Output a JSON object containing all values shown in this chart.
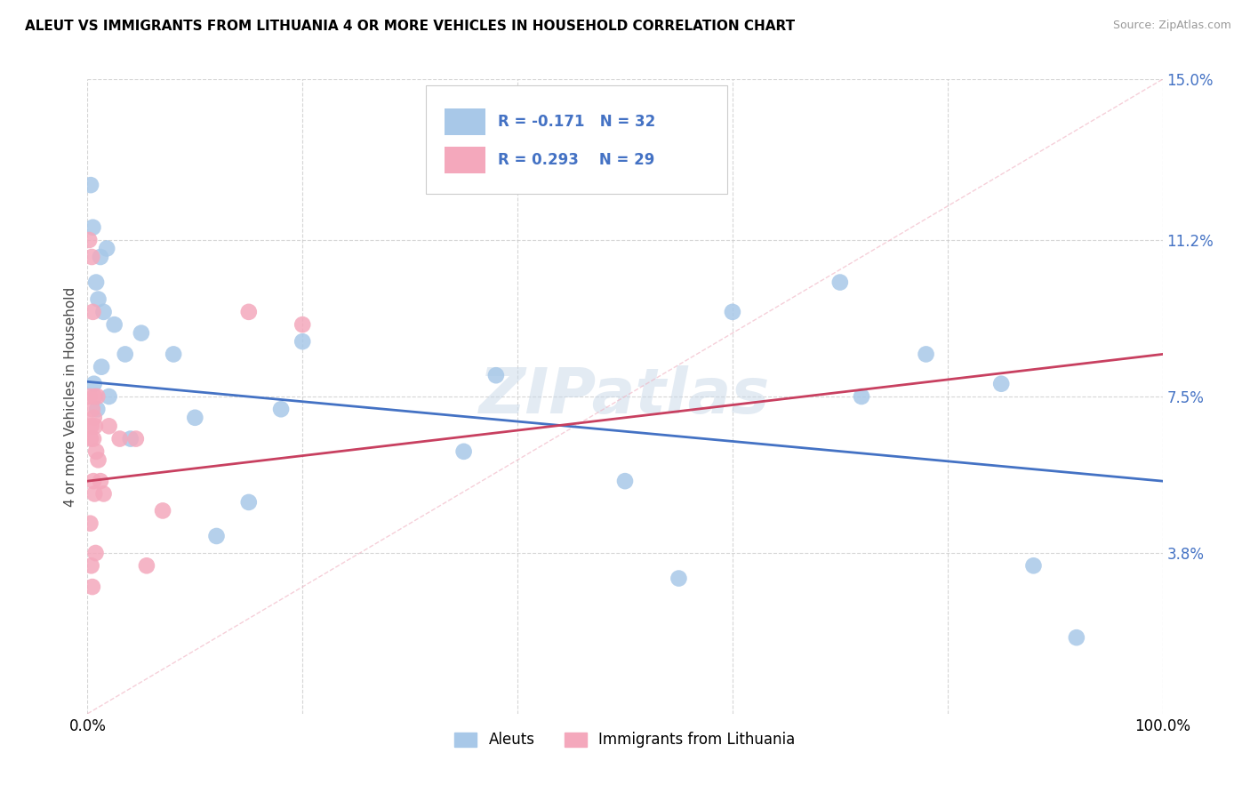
{
  "title": "ALEUT VS IMMIGRANTS FROM LITHUANIA 4 OR MORE VEHICLES IN HOUSEHOLD CORRELATION CHART",
  "source": "Source: ZipAtlas.com",
  "ylabel": "4 or more Vehicles in Household",
  "ytick_values": [
    3.8,
    7.5,
    11.2,
    15.0
  ],
  "xmin": 0.0,
  "xmax": 100.0,
  "ymin": 0.0,
  "ymax": 15.0,
  "legend_label1": "Aleuts",
  "legend_label2": "Immigrants from Lithuania",
  "r1": -0.171,
  "n1": 32,
  "r2": 0.293,
  "n2": 29,
  "color_aleut": "#a8c8e8",
  "color_lith": "#f4a8bc",
  "line_color_aleut": "#4472c4",
  "line_color_lith": "#c84060",
  "diag_color": "#f0b0c0",
  "background": "#ffffff",
  "aleut_x": [
    0.3,
    0.5,
    0.8,
    1.0,
    1.2,
    1.5,
    1.8,
    2.0,
    2.5,
    3.5,
    5.0,
    8.0,
    10.0,
    12.0,
    15.0,
    18.0,
    35.0,
    50.0,
    55.0,
    60.0,
    70.0,
    72.0,
    78.0,
    85.0,
    88.0,
    92.0,
    0.6,
    0.9,
    1.3,
    4.0,
    38.0,
    20.0
  ],
  "aleut_y": [
    12.5,
    11.5,
    10.2,
    9.8,
    10.8,
    9.5,
    11.0,
    7.5,
    9.2,
    8.5,
    9.0,
    8.5,
    7.0,
    4.2,
    5.0,
    7.2,
    6.2,
    5.5,
    3.2,
    9.5,
    10.2,
    7.5,
    8.5,
    7.8,
    3.5,
    1.8,
    7.8,
    7.2,
    8.2,
    6.5,
    8.0,
    8.8
  ],
  "lith_x": [
    0.15,
    0.2,
    0.3,
    0.35,
    0.4,
    0.45,
    0.5,
    0.55,
    0.6,
    0.65,
    0.7,
    0.8,
    0.9,
    1.0,
    1.2,
    1.5,
    2.0,
    3.0,
    4.5,
    5.5,
    7.0,
    15.0,
    20.0,
    0.25,
    0.35,
    0.45,
    0.55,
    0.65,
    0.75
  ],
  "lith_y": [
    11.2,
    7.5,
    6.5,
    6.8,
    10.8,
    7.2,
    9.5,
    6.5,
    7.0,
    7.5,
    6.8,
    6.2,
    7.5,
    6.0,
    5.5,
    5.2,
    6.8,
    6.5,
    6.5,
    3.5,
    4.8,
    9.5,
    9.2,
    4.5,
    3.5,
    3.0,
    5.5,
    5.2,
    3.8
  ],
  "aleut_line_x0": 0.0,
  "aleut_line_y0": 7.85,
  "aleut_line_x1": 100.0,
  "aleut_line_y1": 5.5,
  "lith_line_x0": 0.0,
  "lith_line_y0": 5.5,
  "lith_line_x1": 100.0,
  "lith_line_y1": 8.5
}
